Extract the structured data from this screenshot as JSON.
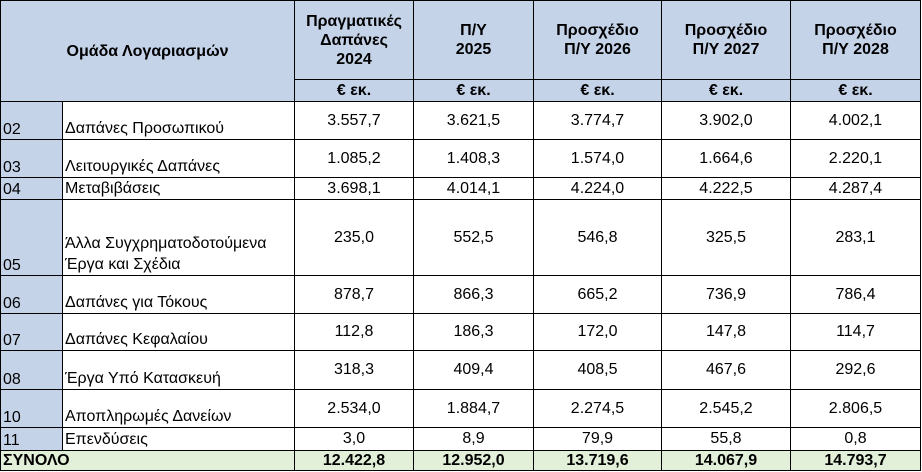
{
  "header": {
    "group_label": "Ομάδα Λογαριασμών",
    "columns": [
      {
        "line1": "Πραγματικές",
        "line2": "Δαπάνες",
        "line3": "2024"
      },
      {
        "line1": "Π/Υ",
        "line2": "2025",
        "line3": ""
      },
      {
        "line1": "Προσχέδιο",
        "line2": "Π/Υ 2026",
        "line3": ""
      },
      {
        "line1": "Προσχέδιο",
        "line2": "Π/Υ 2027",
        "line3": ""
      },
      {
        "line1": "Προσχέδιο",
        "line2": "Π/Υ 2028",
        "line3": ""
      }
    ],
    "unit": "€ εκ."
  },
  "rows": [
    {
      "code": "02",
      "name": "Δαπάνες Προσωπικού",
      "values": [
        "3.557,7",
        "3.621,5",
        "3.774,7",
        "3.902,0",
        "4.002,1"
      ]
    },
    {
      "code": "03",
      "name": "Λειτουργικές Δαπάνες",
      "values": [
        "1.085,2",
        "1.408,3",
        "1.574,0",
        "1.664,6",
        "2.220,1"
      ]
    },
    {
      "code": "04",
      "name": "Μεταβιβάσεις",
      "values": [
        "3.698,1",
        "4.014,1",
        "4.224,0",
        "4.222,5",
        "4.287,4"
      ]
    },
    {
      "code": "05",
      "name": "Άλλα Συγχρηματοδοτούμενα Έργα και Σχέδια",
      "values": [
        "235,0",
        "552,5",
        "546,8",
        "325,5",
        "283,1"
      ]
    },
    {
      "code": "06",
      "name": "Δαπάνες για Τόκους",
      "values": [
        "878,7",
        "866,3",
        "665,2",
        "736,9",
        "786,4"
      ]
    },
    {
      "code": "07",
      "name": "Δαπάνες Κεφαλαίου",
      "values": [
        "112,8",
        "186,3",
        "172,0",
        "147,8",
        "114,7"
      ]
    },
    {
      "code": "08",
      "name": "Έργα Υπό Κατασκευή",
      "values": [
        "318,3",
        "409,4",
        "408,5",
        "467,6",
        "292,6"
      ]
    },
    {
      "code": "10",
      "name": "Αποπληρωμές Δανείων",
      "values": [
        "2.534,0",
        "1.884,7",
        "2.274,5",
        "2.545,2",
        "2.806,5"
      ]
    },
    {
      "code": "11",
      "name": "Επενδύσεις",
      "values": [
        "3,0",
        "8,9",
        "79,9",
        "55,8",
        "0,8"
      ]
    }
  ],
  "total": {
    "label": "ΣΥΝΟΛΟ",
    "values": [
      "12.422,8",
      "12.952,0",
      "13.719,6",
      "14.067,9",
      "14.793,7"
    ]
  }
}
